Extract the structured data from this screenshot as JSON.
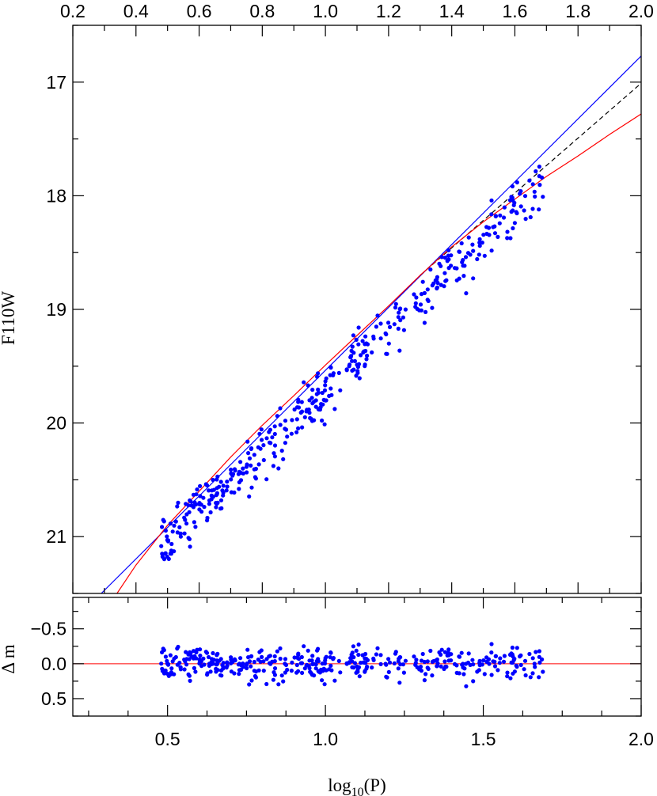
{
  "chart_data": [
    {
      "type": "scatter",
      "panel": "main",
      "xlabel": "",
      "ylabel": "F110W",
      "xlim": [
        0.2,
        2.0
      ],
      "ylim": [
        21.5,
        16.5
      ],
      "y_inverted": true,
      "x_ticks_top": [
        "0.2",
        "0.4",
        "0.6",
        "0.8",
        "1.0",
        "1.2",
        "1.4",
        "1.6",
        "1.8",
        "2.0"
      ],
      "y_ticks": [
        "17",
        "18",
        "19",
        "20",
        "21"
      ],
      "colors": {
        "points": "#0000ff",
        "linear_fit": "#0000ff",
        "curved_fit": "#ff0000",
        "dashed_fit": "#000000"
      },
      "fits": [
        {
          "style": "solid",
          "color": "#0000ff",
          "x": [
            0.29,
            2.0
          ],
          "y": [
            21.5,
            16.77
          ]
        },
        {
          "style": "dashed",
          "color": "#000000",
          "x": [
            1.3,
            2.0
          ],
          "y": [
            18.7,
            17.01
          ]
        },
        {
          "style": "solid",
          "color": "#ff0000",
          "x": [
            0.34,
            0.4,
            0.5,
            0.6,
            0.7,
            0.8,
            0.9,
            1.0,
            1.1,
            1.2,
            1.3,
            1.4,
            1.5,
            1.6,
            1.7,
            1.8,
            1.9,
            2.0
          ],
          "y": [
            21.5,
            21.25,
            20.9,
            20.6,
            20.3,
            20.02,
            19.76,
            19.49,
            19.23,
            18.97,
            18.7,
            18.45,
            18.23,
            18.03,
            17.83,
            17.65,
            17.46,
            17.28
          ]
        }
      ]
    },
    {
      "type": "scatter",
      "panel": "residual",
      "xlabel": "log₁₀(P)",
      "xlabel_main": "log",
      "xlabel_sub": "10",
      "xlabel_tail": "(P)",
      "ylabel": "Δ m",
      "xlim": [
        0.2,
        2.0
      ],
      "ylim": [
        0.75,
        -0.95
      ],
      "y_inverted": true,
      "x_ticks": [
        "0.5",
        "1.0",
        "1.5",
        "2.0"
      ],
      "y_ticks": [
        "−0.5",
        "0.0",
        "0.5"
      ],
      "zero_line": {
        "y": 0.0,
        "color": "#ff0000"
      }
    }
  ],
  "scatter_seed": 1234,
  "scatter_count": 420,
  "scatter_x_range": [
    0.48,
    1.69
  ],
  "scatter_scatter_sigma": 0.22
}
